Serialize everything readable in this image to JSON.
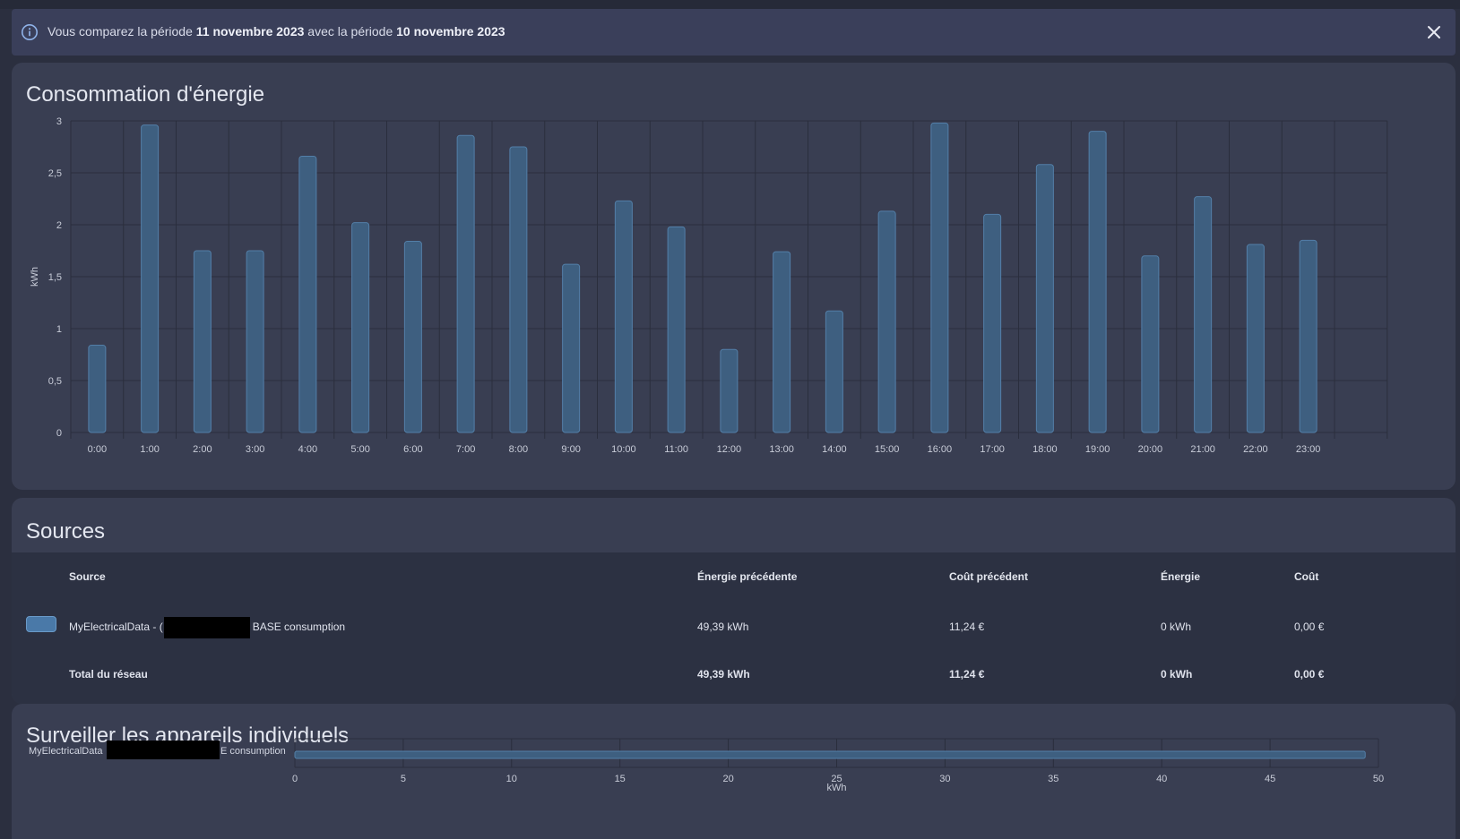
{
  "banner": {
    "prefix": "Vous comparez la période ",
    "period1": "11 novembre 2023",
    "middle": " avec la période ",
    "period2": "10 novembre 2023",
    "info_icon": "info-circle-icon",
    "close_icon": "close-icon"
  },
  "energy_card": {
    "title": "Consommation d'énergie"
  },
  "chart_data": {
    "type": "bar",
    "ylabel": "kWh",
    "ylim": [
      0,
      3
    ],
    "yticks": [
      "0",
      "0,5",
      "1",
      "1,5",
      "2",
      "2,5",
      "3"
    ],
    "categories": [
      "0:00",
      "1:00",
      "2:00",
      "3:00",
      "4:00",
      "5:00",
      "6:00",
      "7:00",
      "8:00",
      "9:00",
      "10:00",
      "11:00",
      "12:00",
      "13:00",
      "14:00",
      "15:00",
      "16:00",
      "17:00",
      "18:00",
      "19:00",
      "20:00",
      "21:00",
      "22:00",
      "23:00"
    ],
    "values": [
      0.84,
      2.96,
      1.75,
      1.75,
      2.66,
      2.02,
      1.84,
      2.86,
      2.75,
      1.62,
      2.23,
      1.98,
      0.8,
      1.74,
      1.17,
      2.13,
      2.98,
      2.1,
      2.58,
      2.9,
      1.7,
      2.27,
      1.81,
      1.85
    ],
    "bar_color": "#3e5f80",
    "bar_border": "#537fa8"
  },
  "sources_card": {
    "title": "Sources",
    "headers": {
      "source": "Source",
      "prev_energy": "Énergie précédente",
      "prev_cost": "Coût précédent",
      "energy": "Énergie",
      "cost": "Coût"
    },
    "row": {
      "name_prefix": "MyElectricalData - (",
      "name_suffix": "BASE consumption",
      "prev_energy": "49,39 kWh",
      "prev_cost": "11,24 €",
      "energy": "0 kWh",
      "cost": "0,00 €"
    },
    "total": {
      "label": "Total du réseau",
      "prev_energy": "49,39 kWh",
      "prev_cost": "11,24 €",
      "energy": "0 kWh",
      "cost": "0,00 €"
    }
  },
  "devices_card": {
    "title": "Surveiller les appareils individuels",
    "device_prefix": "MyElectricalData",
    "device_suffix": "E consumption",
    "xlabel": "kWh",
    "xticks": [
      "0",
      "5",
      "10",
      "15",
      "20",
      "25",
      "30",
      "35",
      "40",
      "45",
      "50"
    ],
    "xlim": [
      0,
      50
    ],
    "value": 49.39
  }
}
